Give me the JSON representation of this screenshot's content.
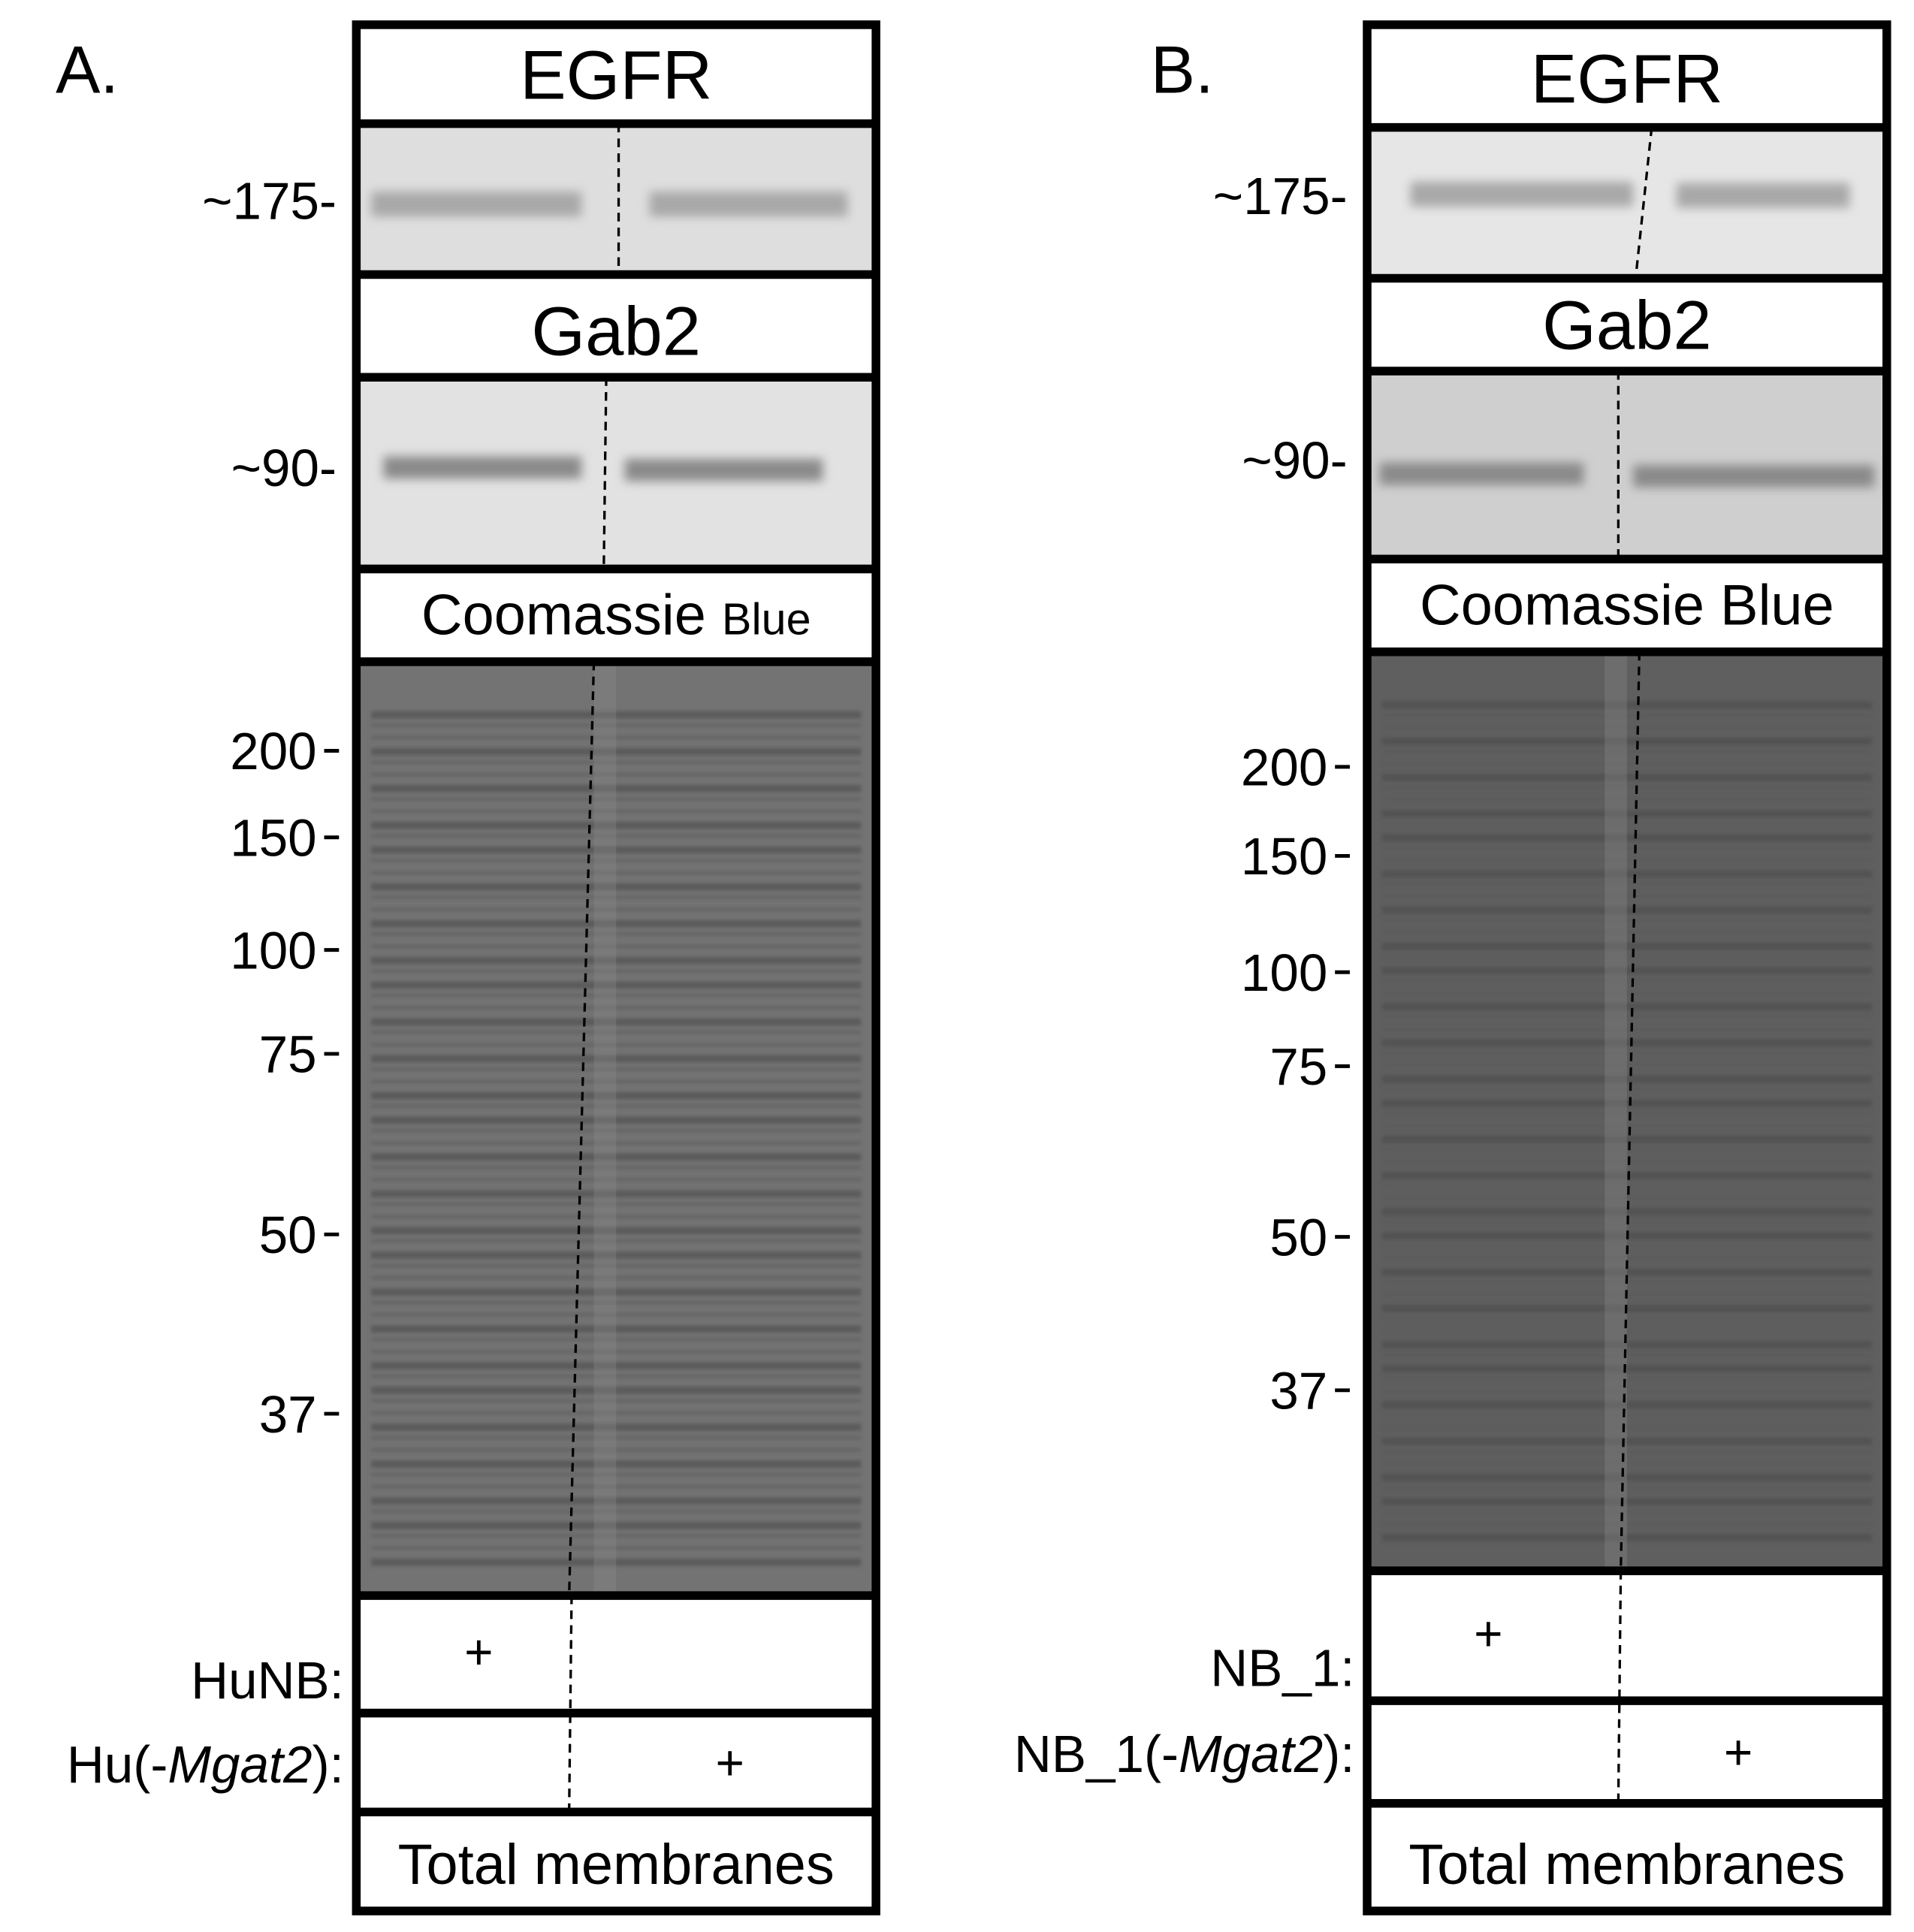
{
  "panels": [
    {
      "label": "A.",
      "egfr": "EGFR",
      "egfr_marker": "~175-",
      "gab2": "Gab2",
      "gab2_marker": "~90-",
      "stain": [
        "Coomassie",
        "Blue"
      ],
      "gel_markers": [
        "200",
        "150",
        "100",
        "75",
        "50",
        "37"
      ],
      "rows": [
        {
          "name": [
            "HuNB:"
          ],
          "sign": "+"
        },
        {
          "name": [
            "Hu(-",
            "Mgat2",
            "):"
          ],
          "sign": "+"
        }
      ],
      "footer": "Total membranes"
    },
    {
      "label": "B.",
      "egfr": "EGFR",
      "egfr_marker": "~175-",
      "gab2": "Gab2",
      "gab2_marker": "~90-",
      "stain": [
        "Coomassie",
        "Blue"
      ],
      "gel_markers": [
        "200",
        "150",
        "100",
        "75",
        "50",
        "37"
      ],
      "rows": [
        {
          "name": [
            "NB_1:"
          ],
          "sign": "+"
        },
        {
          "name": [
            "NB_1(-",
            "Mgat2",
            "):"
          ],
          "sign": "+"
        }
      ],
      "footer": "Total membranes"
    }
  ]
}
